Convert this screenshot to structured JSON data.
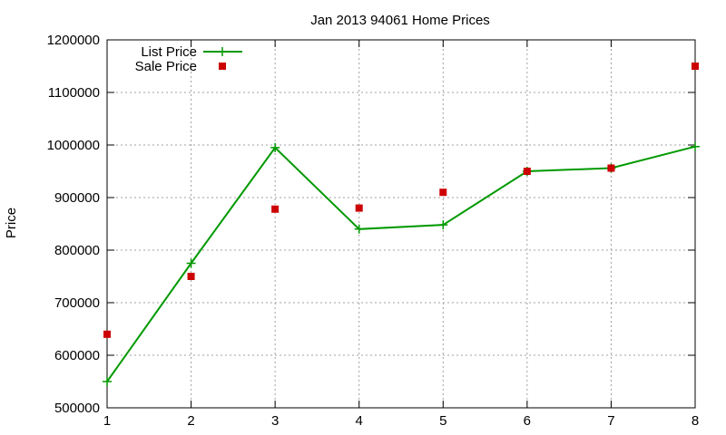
{
  "chart_data": {
    "type": "line",
    "title": "Jan 2013 94061 Home Prices",
    "xlabel": "",
    "ylabel": "Price",
    "x": [
      1,
      2,
      3,
      4,
      5,
      6,
      7,
      8
    ],
    "xlim": [
      1,
      8
    ],
    "ylim": [
      500000,
      1200000
    ],
    "xticks": [
      "1",
      "2",
      "3",
      "4",
      "5",
      "6",
      "7",
      "8"
    ],
    "yticks": [
      "500000",
      "600000",
      "700000",
      "800000",
      "900000",
      "1000000",
      "1100000",
      "1200000"
    ],
    "grid": true,
    "legend_position": "top-left",
    "series": [
      {
        "name": "List Price",
        "style": "lines-with-plus-points",
        "color": "#009900",
        "values": [
          550000,
          775000,
          995000,
          840000,
          848000,
          950000,
          956000,
          997000
        ]
      },
      {
        "name": "Sale Price",
        "style": "square-points",
        "color": "#cc0000",
        "values": [
          640000,
          750000,
          878000,
          880000,
          910000,
          950000,
          956000,
          1150000
        ]
      }
    ]
  }
}
